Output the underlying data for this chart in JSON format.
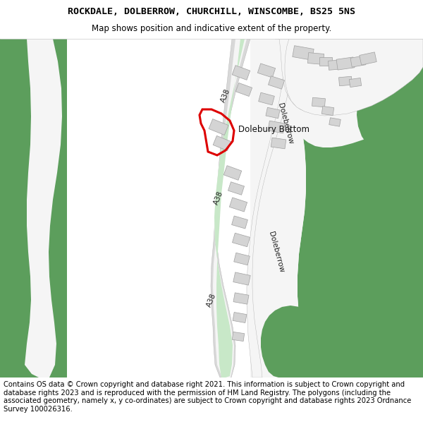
{
  "title": "ROCKDALE, DOLBERROW, CHURCHILL, WINSCOMBE, BS25 5NS",
  "subtitle": "Map shows position and indicative extent of the property.",
  "footer": "Contains OS data © Crown copyright and database right 2021. This information is subject to Crown copyright and database rights 2023 and is reproduced with the permission of HM Land Registry. The polygons (including the associated geometry, namely x, y co-ordinates) are subject to Crown copyright and database rights 2023 Ordnance Survey 100026316.",
  "bg_color": "#ffffff",
  "green_color": "#5c9e5c",
  "light_green_color": "#c8e8c8",
  "road_white": "#f5f5f5",
  "road_grey": "#d8d8d8",
  "road_edge": "#b0b0b0",
  "building_fill": "#d4d4d4",
  "building_edge": "#a0a0a0",
  "red_color": "#dd0000",
  "title_fontsize": 9.5,
  "subtitle_fontsize": 8.5,
  "footer_fontsize": 7.2
}
